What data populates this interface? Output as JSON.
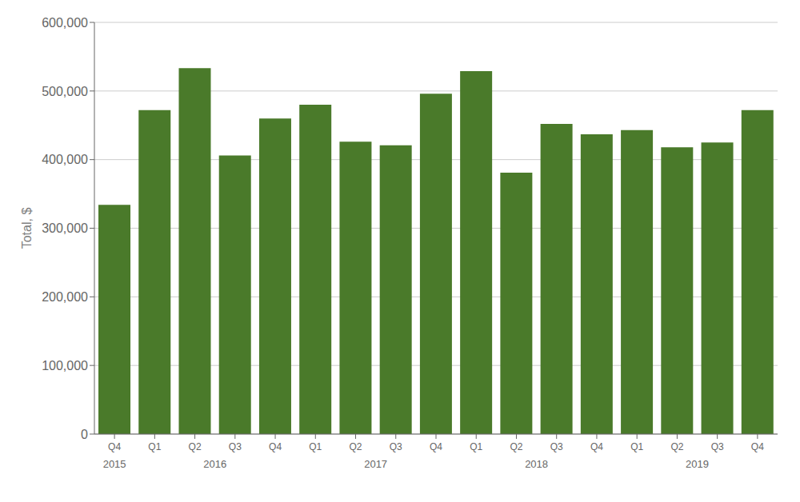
{
  "chart_data": {
    "type": "bar",
    "categories": [
      "Q4",
      "Q1",
      "Q2",
      "Q3",
      "Q4",
      "Q1",
      "Q2",
      "Q3",
      "Q4",
      "Q1",
      "Q2",
      "Q3",
      "Q4",
      "Q1",
      "Q2",
      "Q3",
      "Q4"
    ],
    "years": [
      "2015",
      "2016",
      "2016",
      "2016",
      "2016",
      "2017",
      "2017",
      "2017",
      "2017",
      "2018",
      "2018",
      "2018",
      "2018",
      "2019",
      "2019",
      "2019",
      "2019"
    ],
    "values": [
      334000,
      472000,
      533417,
      406000,
      460000,
      480000,
      426000,
      421000,
      496000,
      529000,
      381000,
      452000,
      437000,
      443000,
      418000,
      425000,
      472000
    ],
    "color": "#4a7a2a",
    "ylabel": "Total, $",
    "ylim": [
      0,
      600000
    ],
    "yticks": [
      0,
      {
        "value": 100000,
        "label": "100,000"
      },
      {
        "value": 200000,
        "label": "200,000"
      },
      {
        "value": 300000,
        "label": "300,000"
      },
      {
        "value": 400000,
        "label": "400,000"
      },
      {
        "value": 500000,
        "label": "500,000"
      },
      {
        "value": 600000,
        "label": "600,000"
      }
    ],
    "grid": true
  }
}
